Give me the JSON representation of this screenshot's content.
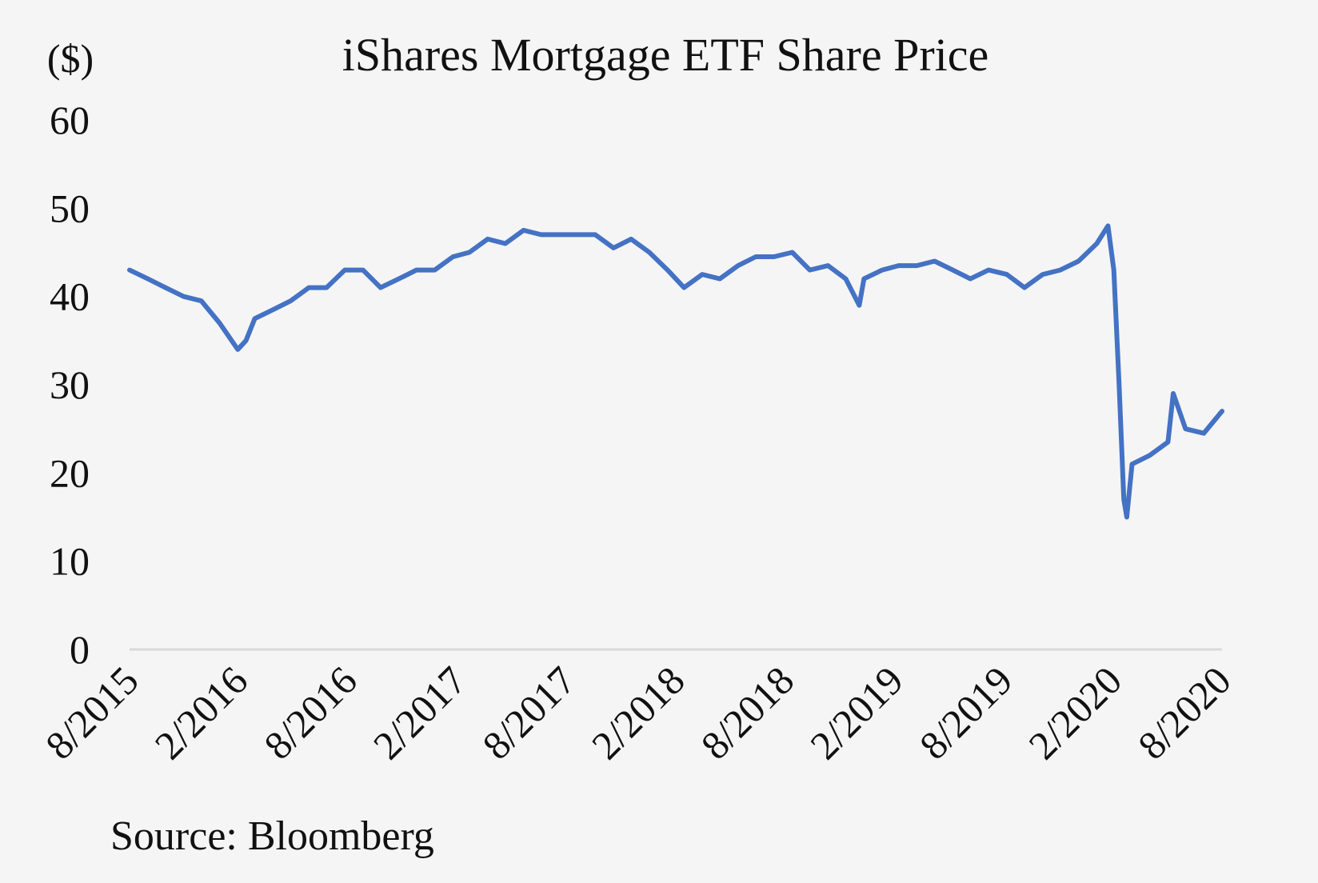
{
  "chart_data": {
    "type": "line",
    "title": "iShares Mortgage ETF Share Price",
    "ylabel": "($)",
    "xlabel": "",
    "source": "Source: Bloomberg",
    "ylim": [
      0,
      60
    ],
    "yticks": [
      "0",
      "10",
      "20",
      "30",
      "40",
      "50",
      "60"
    ],
    "xticks": [
      "8/2015",
      "2/2016",
      "8/2016",
      "2/2017",
      "8/2017",
      "2/2018",
      "8/2018",
      "2/2019",
      "8/2019",
      "2/2020",
      "8/2020"
    ],
    "grid": false,
    "line_color": "#4472c4",
    "series": [
      {
        "x": [
          "2015-08-01",
          "2015-09-01",
          "2015-10-01",
          "2015-11-01",
          "2015-12-01",
          "2016-01-01",
          "2016-02-01",
          "2016-02-15",
          "2016-03-01",
          "2016-04-01",
          "2016-05-01",
          "2016-06-01",
          "2016-07-01",
          "2016-08-01",
          "2016-09-01",
          "2016-10-01",
          "2016-11-01",
          "2016-12-01",
          "2017-01-01",
          "2017-02-01",
          "2017-03-01",
          "2017-04-01",
          "2017-05-01",
          "2017-06-01",
          "2017-07-01",
          "2017-08-01",
          "2017-09-01",
          "2017-10-01",
          "2017-11-01",
          "2017-12-01",
          "2018-01-01",
          "2018-02-01",
          "2018-03-01",
          "2018-04-01",
          "2018-05-01",
          "2018-06-01",
          "2018-07-01",
          "2018-08-01",
          "2018-09-01",
          "2018-10-01",
          "2018-11-01",
          "2018-12-01",
          "2018-12-24",
          "2019-01-01",
          "2019-02-01",
          "2019-03-01",
          "2019-04-01",
          "2019-05-01",
          "2019-06-01",
          "2019-07-01",
          "2019-08-01",
          "2019-09-01",
          "2019-10-01",
          "2019-11-01",
          "2019-12-01",
          "2020-01-01",
          "2020-02-01",
          "2020-02-20",
          "2020-03-01",
          "2020-03-10",
          "2020-03-18",
          "2020-03-23",
          "2020-04-01",
          "2020-05-01",
          "2020-06-01",
          "2020-06-10",
          "2020-07-01",
          "2020-08-01",
          "2020-09-01"
        ],
        "y": [
          43,
          42,
          41,
          40,
          39.5,
          37,
          34,
          35,
          37.5,
          38.5,
          39.5,
          41,
          41,
          43,
          43,
          41,
          42,
          43,
          43,
          44.5,
          45,
          46.5,
          46,
          47.5,
          47,
          47,
          47,
          47,
          45.5,
          46.5,
          45,
          43,
          41,
          42.5,
          42,
          43.5,
          44.5,
          44.5,
          45,
          43,
          43.5,
          42,
          39,
          42,
          43,
          43.5,
          43.5,
          44,
          43,
          42,
          43,
          42.5,
          41,
          42.5,
          43,
          44,
          46,
          48,
          43,
          30,
          17,
          15,
          21,
          22,
          23.5,
          29,
          25,
          24.5,
          27
        ]
      }
    ]
  }
}
